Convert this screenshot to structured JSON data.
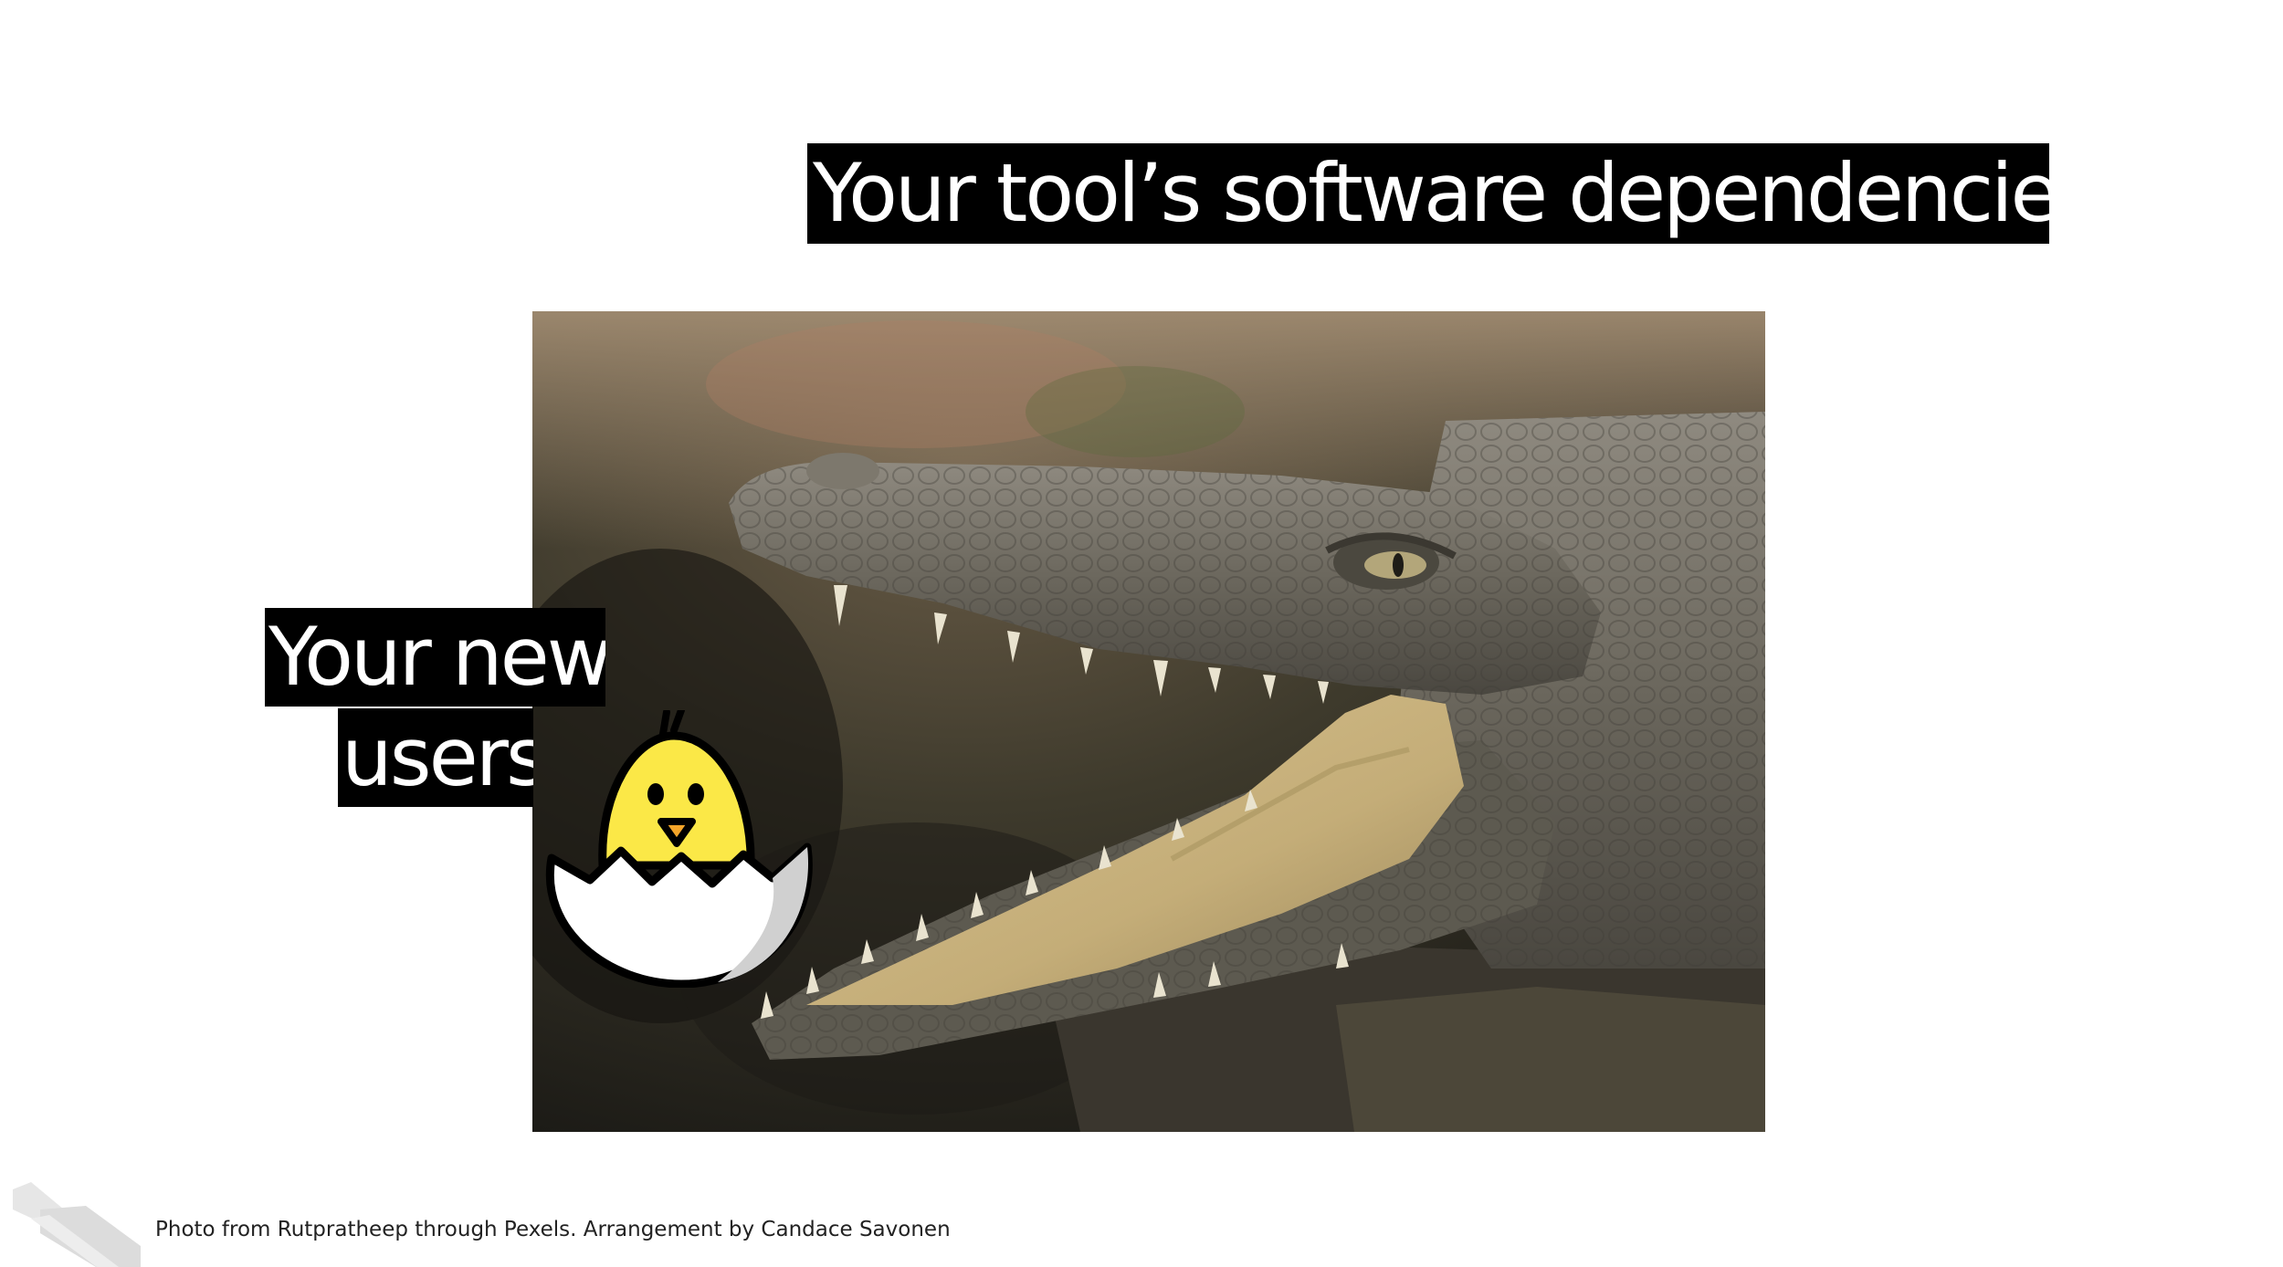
{
  "slide": {
    "title": "Your tool’s software dependencies",
    "label_line_1": "Your new",
    "label_line_2": "users",
    "credit": "Photo from Rutpratheep through Pexels. Arrangement by Candace Savonen"
  },
  "icons": {
    "chick": "hatching-chick-icon",
    "logo": "slanted-stripes-logo"
  },
  "colors": {
    "label_background": "#000000",
    "label_text": "#ffffff",
    "chick_yellow": "#fbe847",
    "eggshell": "#ffffff"
  }
}
